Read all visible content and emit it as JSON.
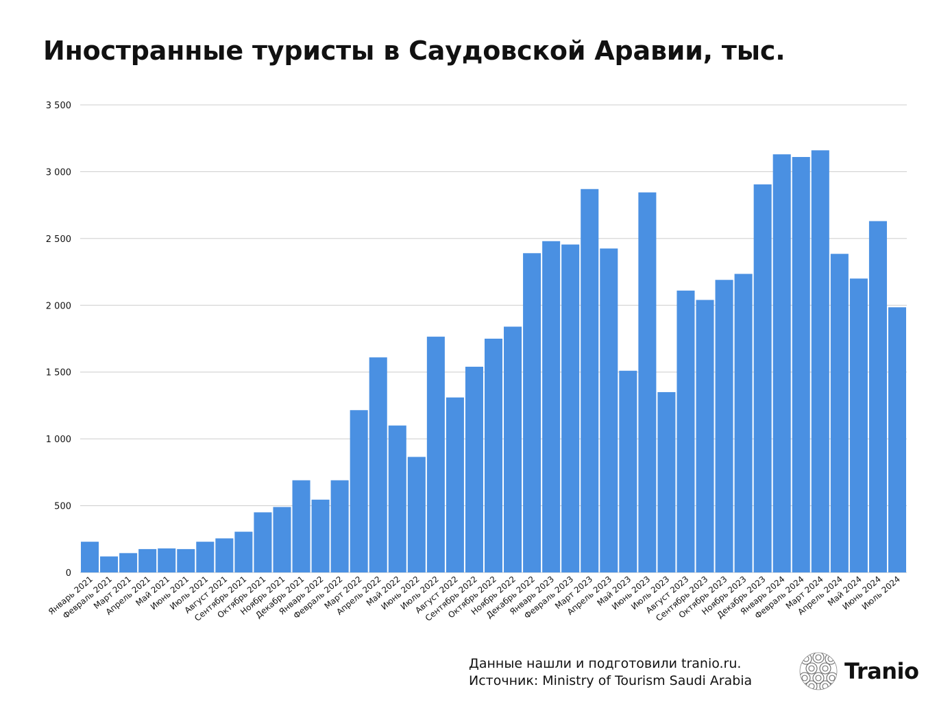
{
  "title": "Иностранные туристы в Саудовской Аравии, тыс.",
  "footer": {
    "line1": "Данные нашли и подготовили tranio.ru.",
    "line2": "Источник: Ministry of Tourism Saudi Arabia"
  },
  "brand": {
    "name": "Tranio",
    "logo_icon": "tranio-logo-icon"
  },
  "colors": {
    "bar": "#4a90e2",
    "grid": "#cccccc",
    "text": "#111111"
  },
  "chart_data": {
    "type": "bar",
    "title": "Иностранные туристы в Саудовской Аравии, тыс.",
    "xlabel": "",
    "ylabel": "",
    "ylim": [
      0,
      3500
    ],
    "grid": true,
    "yticks": [
      0,
      500,
      1000,
      1500,
      2000,
      2500,
      3000,
      3500
    ],
    "ytick_labels": [
      "0",
      "500",
      "1 000",
      "1 500",
      "2 000",
      "2 500",
      "3 000",
      "3 500"
    ],
    "categories": [
      "Январь 2021",
      "Февраль 2021",
      "Март 2021",
      "Апрель 2021",
      "Май 2021",
      "Июнь 2021",
      "Июль 2021",
      "Август 2021",
      "Сентябрь 2021",
      "Октябрь 2021",
      "Ноябрь 2021",
      "Декабрь 2021",
      "Январь 2022",
      "Февраль 2022",
      "Март 2022",
      "Апрель 2022",
      "Май 2022",
      "Июнь 2022",
      "Июль 2022",
      "Август 2022",
      "Сентябрь 2022",
      "Октябрь 2022",
      "Ноябрь 2022",
      "Декабрь 2022",
      "Январь 2023",
      "Февраль 2023",
      "Март 2023",
      "Апрель 2023",
      "Май 2023",
      "Июнь 2023",
      "Июль 2023",
      "Август 2023",
      "Сентябрь 2023",
      "Октябрь 2023",
      "Ноябрь 2023",
      "Декабрь 2023",
      "Январь 2024",
      "Февраль 2024",
      "Март 2024",
      "Апрель 2024",
      "Май 2024",
      "Июнь 2024",
      "Июль 2024"
    ],
    "values": [
      230,
      120,
      145,
      175,
      180,
      175,
      230,
      255,
      305,
      450,
      490,
      690,
      545,
      690,
      1215,
      1610,
      1100,
      865,
      1765,
      1310,
      1540,
      1750,
      1840,
      2390,
      2480,
      2455,
      2870,
      2425,
      1510,
      2845,
      1350,
      2110,
      2040,
      2190,
      2235,
      2905,
      3130,
      3110,
      3160,
      2385,
      2200,
      2630,
      1985
    ]
  }
}
